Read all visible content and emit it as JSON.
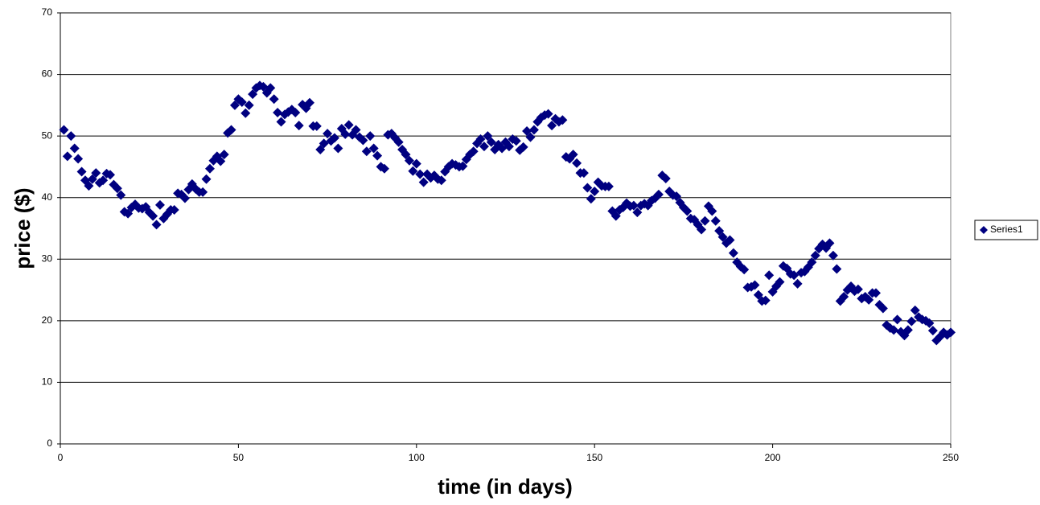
{
  "chart_data": {
    "type": "scatter",
    "x_label": "time (in days)",
    "y_label": "price ($)",
    "xlim": [
      0,
      250
    ],
    "xticks": [
      0,
      50,
      100,
      150,
      200,
      250
    ],
    "ylim": [
      0,
      70
    ],
    "yticks": [
      0,
      10,
      20,
      30,
      40,
      50,
      60,
      70
    ],
    "grid": true,
    "legend": "right",
    "series": [
      {
        "name": "Series1",
        "color": "#000080",
        "x": [
          1,
          2,
          3,
          4,
          5,
          6,
          7,
          8,
          9,
          10,
          11,
          12,
          13,
          14,
          15,
          16,
          17,
          18,
          19,
          20,
          21,
          22,
          23,
          24,
          25,
          26,
          27,
          28,
          29,
          30,
          31,
          32,
          33,
          34,
          35,
          36,
          37,
          38,
          39,
          40,
          41,
          42,
          43,
          44,
          45,
          46,
          47,
          48,
          49,
          50,
          51,
          52,
          53,
          54,
          55,
          56,
          57,
          58,
          59,
          60,
          61,
          62,
          63,
          64,
          65,
          66,
          67,
          68,
          69,
          70,
          71,
          72,
          73,
          74,
          75,
          76,
          77,
          78,
          79,
          80,
          81,
          82,
          83,
          84,
          85,
          86,
          87,
          88,
          89,
          90,
          91,
          92,
          93,
          94,
          95,
          96,
          97,
          98,
          99,
          100,
          101,
          102,
          103,
          104,
          105,
          106,
          107,
          108,
          109,
          110,
          111,
          112,
          113,
          114,
          115,
          116,
          117,
          118,
          119,
          120,
          121,
          122,
          123,
          124,
          125,
          126,
          127,
          128,
          129,
          130,
          131,
          132,
          133,
          134,
          135,
          136,
          137,
          138,
          139,
          140,
          141,
          142,
          143,
          144,
          145,
          146,
          147,
          148,
          149,
          150,
          151,
          152,
          153,
          154,
          155,
          156,
          157,
          158,
          159,
          160,
          161,
          162,
          163,
          164,
          165,
          166,
          167,
          168,
          169,
          170,
          171,
          172,
          173,
          174,
          175,
          176,
          177,
          178,
          179,
          180,
          181,
          182,
          183,
          184,
          185,
          186,
          187,
          188,
          189,
          190,
          191,
          192,
          193,
          194,
          195,
          196,
          197,
          198,
          199,
          200,
          201,
          202,
          203,
          204,
          205,
          206,
          207,
          208,
          209,
          210,
          211,
          212,
          213,
          214,
          215,
          216,
          217,
          218,
          219,
          220,
          221,
          222,
          223,
          224,
          225,
          226,
          227,
          228,
          229,
          230,
          231,
          232,
          233,
          234,
          235,
          236,
          237,
          238,
          239,
          240,
          241,
          242,
          243,
          244,
          245,
          246,
          247,
          248,
          249,
          250
        ],
        "values": [
          51,
          46.7,
          50,
          48,
          46.3,
          44.2,
          42.8,
          41.9,
          43,
          44,
          42.4,
          42.8,
          43.9,
          43.7,
          42.1,
          41.5,
          40.4,
          37.7,
          37.4,
          38.4,
          38.9,
          38.3,
          38.2,
          38.5,
          37.6,
          37,
          35.6,
          38.8,
          36.6,
          37.3,
          38,
          38,
          40.7,
          40.5,
          39.9,
          41.3,
          42.2,
          41.4,
          40.9,
          40.9,
          43,
          44.7,
          46,
          46.7,
          45.9,
          47,
          50.5,
          51,
          55,
          56,
          55.5,
          53.7,
          55,
          56.8,
          57.8,
          58.2,
          58,
          57,
          57.8,
          56,
          53.8,
          52.3,
          53.5,
          53.9,
          54.3,
          53.8,
          51.7,
          55.1,
          54.5,
          55.4,
          51.6,
          51.6,
          47.8,
          48.8,
          50.4,
          49.2,
          49.7,
          48,
          51.2,
          50.3,
          51.8,
          50.2,
          51,
          49.8,
          49.3,
          47.5,
          50,
          48,
          46.8,
          45,
          44.7,
          50.2,
          50.4,
          49.7,
          49,
          47.8,
          47,
          46,
          44.3,
          45.5,
          43.8,
          42.5,
          43.8,
          43.2,
          43.6,
          43,
          42.8,
          44.2,
          45,
          45.5,
          45.3,
          45,
          45.1,
          46.2,
          47,
          47.5,
          48.8,
          49.5,
          48.3,
          50,
          49,
          47.8,
          48.6,
          48,
          49,
          48.3,
          49.5,
          49.2,
          47.7,
          48.2,
          50.8,
          49.8,
          51,
          52.3,
          53,
          53.4,
          53.6,
          51.7,
          52.8,
          52.3,
          52.6,
          46.6,
          46.3,
          47,
          45.6,
          44,
          44,
          41.6,
          39.8,
          41,
          42.5,
          41.9,
          41.8,
          41.8,
          37.8,
          37,
          38,
          38.4,
          39.1,
          38.6,
          38.7,
          37.6,
          38.7,
          39,
          38.7,
          39.5,
          39.9,
          40.5,
          43.6,
          43.1,
          41,
          40.4,
          40.2,
          39.2,
          38.4,
          37.8,
          36.6,
          36.4,
          35.6,
          34.8,
          36.2,
          38.6,
          37.8,
          36.2,
          34.6,
          33.6,
          32.6,
          33.1,
          31,
          29.5,
          28.8,
          28.3,
          25.4,
          25.5,
          25.8,
          24.2,
          23.2,
          23.3,
          27.4,
          24.7,
          25.6,
          26.3,
          28.9,
          28.5,
          27.6,
          27.4,
          26,
          27.8,
          28,
          28.7,
          29.5,
          30.6,
          31.7,
          32.4,
          31.8,
          32.6,
          30.6,
          28.4,
          23.2,
          23.9,
          25,
          25.6,
          24.8,
          25.1,
          23.6,
          23.9,
          23.4,
          24.5,
          24.5,
          22.6,
          22,
          19.3,
          18.8,
          18.5,
          20.2,
          18.2,
          17.6,
          18.5,
          19.9,
          21.7,
          20.6,
          20.2,
          20,
          19.6,
          18.4,
          16.8,
          17.4,
          18.1,
          17.7,
          18.1
        ]
      }
    ]
  }
}
